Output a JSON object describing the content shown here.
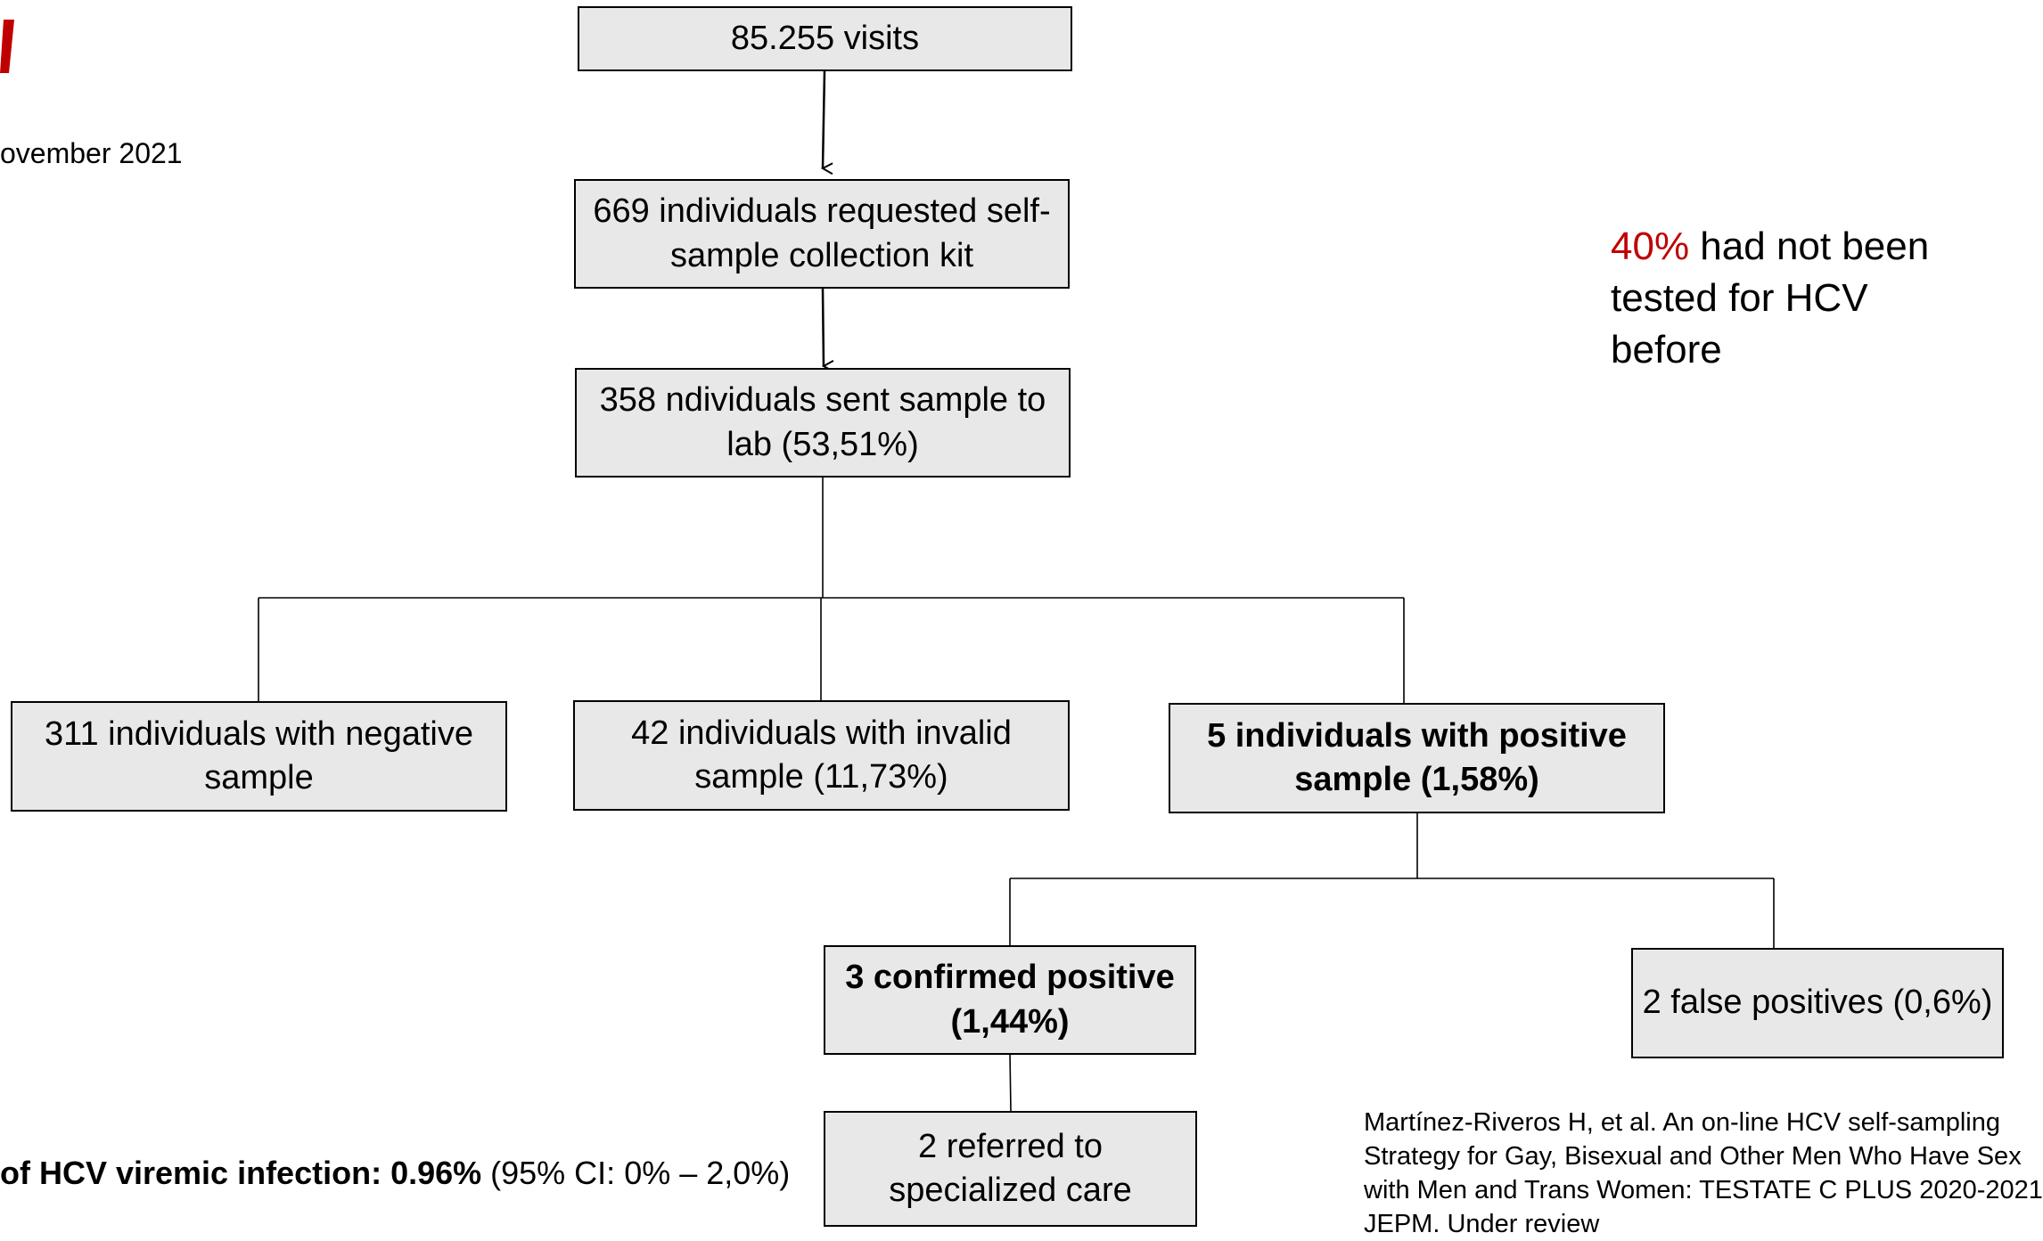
{
  "header": {
    "date_fragment": "ovember 2021",
    "logo_icon": "red-slash-icon",
    "logo_color": "#c00000"
  },
  "flow": {
    "visits": "85.255 visits",
    "requested_kit": "669 individuals requested self-sample collection kit",
    "sent_sample": "358 ndividuals sent sample to lab (53,51%)",
    "negative": "311 individuals with negative sample",
    "invalid": "42 individuals with invalid sample (11,73%)",
    "positive": "5 individuals with positive sample (1,58%)",
    "confirmed": "3 confirmed positive (1,44%)",
    "false_positives": "2 false positives (0,6%)",
    "referred": "2 referred to specialized care"
  },
  "note": {
    "highlight": "40%",
    "text": " had not been tested for HCV before",
    "highlight_color": "#c00000"
  },
  "prevalence": {
    "label_bold": "of HCV viremic infection: 0.96%",
    "ci": " (95% CI: 0% – 2,0%)"
  },
  "reference": {
    "line1": "Martínez-Riveros H, et al. An on-line HCV self-sampling",
    "line2": "Strategy for Gay, Bisexual and Other Men Who Have Sex",
    "line3": "with Men and Trans Women: TESTATE C PLUS 2020-2021",
    "line4": "JEPM. Under review"
  }
}
